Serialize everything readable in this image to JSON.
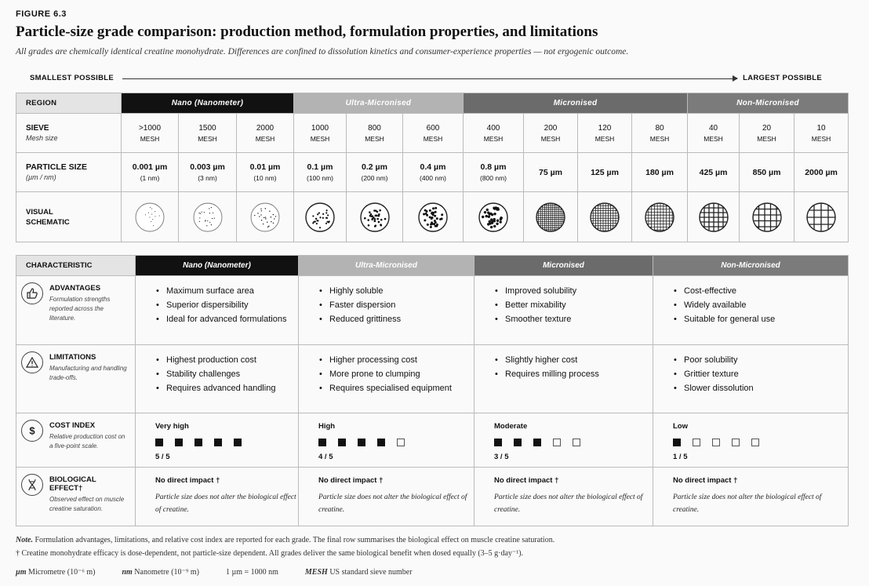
{
  "figure_label": "FIGURE 6.3",
  "title": "Particle-size grade comparison: production method, formulation properties, and limitations",
  "subtitle": "All grades are chemically identical creatine monohydrate. Differences are confined to dissolution kinetics and consumer-experience properties — not ergogenic outcome.",
  "scale": {
    "left": "SMALLEST POSSIBLE",
    "right": "LARGEST POSSIBLE"
  },
  "table1": {
    "region_label": "REGION",
    "regions": [
      {
        "name": "Nano (Nanometer)",
        "span": 3,
        "cls": "g0"
      },
      {
        "name": "Ultra-Micronised",
        "span": 3,
        "cls": "g1"
      },
      {
        "name": "Micronised",
        "span": 4,
        "cls": "g2"
      },
      {
        "name": "Non-Micronised",
        "span": 3,
        "cls": "g3"
      }
    ],
    "sieve_label": "SIEVE",
    "sieve_sub": "Mesh size",
    "mesh_word": "MESH",
    "sieves": [
      ">1000",
      "1500",
      "2000",
      "1000",
      "800",
      "600",
      "400",
      "200",
      "120",
      "80",
      "40",
      "20",
      "10"
    ],
    "size_label": "PARTICLE SIZE",
    "size_sub": "(µm / nm)",
    "sizes": [
      [
        "0.001 µm",
        "(1 nm)"
      ],
      [
        "0.003 µm",
        "(3 nm)"
      ],
      [
        "0.01 µm",
        "(10 nm)"
      ],
      [
        "0.1 µm",
        "(100 nm)"
      ],
      [
        "0.2 µm",
        "(200 nm)"
      ],
      [
        "0.4 µm",
        "(400 nm)"
      ],
      [
        "0.8 µm",
        "(800 nm)"
      ],
      [
        "75 µm",
        ""
      ],
      [
        "125 µm",
        ""
      ],
      [
        "180 µm",
        ""
      ],
      [
        "425 µm",
        ""
      ],
      [
        "850 µm",
        ""
      ],
      [
        "2000 µm",
        ""
      ]
    ],
    "schem_label1": "VISUAL",
    "schem_label2": "SCHEMATIC"
  },
  "table2": {
    "char_label": "CHARACTERISTIC",
    "grades": [
      "Nano (Nanometer)",
      "Ultra-Micronised",
      "Micronised",
      "Non-Micronised"
    ],
    "advantages": {
      "title": "ADVANTAGES",
      "desc": "Formulation strengths reported across the literature.",
      "icon": "thumbs-up-icon",
      "cols": [
        [
          "Maximum surface area",
          "Superior dispersibility",
          "Ideal for advanced formulations"
        ],
        [
          "Highly soluble",
          "Faster dispersion",
          "Reduced grittiness"
        ],
        [
          "Improved solubility",
          "Better mixability",
          "Smoother texture"
        ],
        [
          "Cost-effective",
          "Widely available",
          "Suitable for general use"
        ]
      ]
    },
    "limitations": {
      "title": "LIMITATIONS",
      "desc": "Manufacturing and handling trade-offs.",
      "icon": "warning-icon",
      "cols": [
        [
          "Highest production cost",
          "Stability challenges",
          "Requires advanced handling"
        ],
        [
          "Higher processing cost",
          "More prone to clumping",
          "Requires specialised equipment"
        ],
        [
          "Slightly higher cost",
          "Requires milling process"
        ],
        [
          "Poor solubility",
          "Grittier texture",
          "Slower dissolution"
        ]
      ]
    },
    "cost": {
      "title": "COST INDEX",
      "desc": "Relative production cost on a five-point scale.",
      "icon": "dollar-icon",
      "cols": [
        {
          "level": "Very high",
          "value": 5,
          "score": "5 / 5"
        },
        {
          "level": "High",
          "value": 4,
          "score": "4 / 5"
        },
        {
          "level": "Moderate",
          "value": 3,
          "score": "3 / 5"
        },
        {
          "level": "Low",
          "value": 1,
          "score": "1 / 5"
        }
      ]
    },
    "bio": {
      "title": "BIOLOGICAL EFFECT†",
      "desc": "Observed effect on muscle creatine saturation.",
      "icon": "dna-icon",
      "head": "No direct impact †",
      "text": "Particle size does not alter the biological effect of creatine."
    }
  },
  "note1_b": "Note.",
  "note1": " Formulation advantages, limitations, and relative cost index are reported for each grade. The final row summarises the biological effect on muscle creatine saturation.",
  "note2": "† Creatine monohydrate efficacy is dose-dependent, not particle-size dependent. All grades deliver the same biological benefit when dosed equally (3–5 g·day⁻¹).",
  "legend": [
    {
      "k": "µm",
      "v": "Micrometre (10⁻⁶ m)"
    },
    {
      "k": "nm",
      "v": "Nanometre (10⁻⁹ m)"
    },
    {
      "k": "",
      "v": "1 µm = 1000 nm"
    },
    {
      "k": "MESH",
      "v": "US standard sieve number"
    }
  ]
}
